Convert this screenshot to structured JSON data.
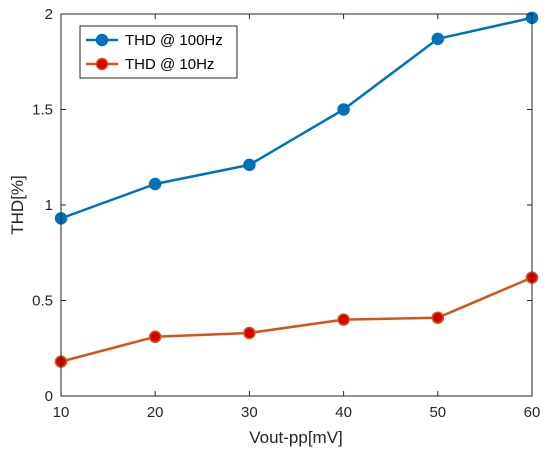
{
  "chart_data": {
    "type": "line",
    "title": "",
    "xlabel": "Vout-pp[mV]",
    "ylabel": "THD[%]",
    "xlim": [
      10,
      60
    ],
    "ylim": [
      0,
      2
    ],
    "xticks": [
      10,
      20,
      30,
      40,
      50,
      60
    ],
    "yticks": [
      0,
      0.5,
      1,
      1.5,
      2
    ],
    "xtick_labels": [
      "10",
      "20",
      "30",
      "40",
      "50",
      "60"
    ],
    "ytick_labels": [
      "0",
      "0.5",
      "1",
      "1.5",
      "2"
    ],
    "grid": false,
    "legend_position": "top-left",
    "x": [
      10,
      20,
      30,
      40,
      50,
      60
    ],
    "series": [
      {
        "name": "THD @ 100Hz",
        "values": [
          0.93,
          1.11,
          1.21,
          1.5,
          1.87,
          1.98
        ],
        "color": "#0072BD",
        "marker_fill": "#0072BD"
      },
      {
        "name": "THD @ 10Hz",
        "values": [
          0.18,
          0.31,
          0.33,
          0.4,
          0.41,
          0.62
        ],
        "color": "#D95319",
        "marker_fill": "#D90000"
      }
    ]
  }
}
